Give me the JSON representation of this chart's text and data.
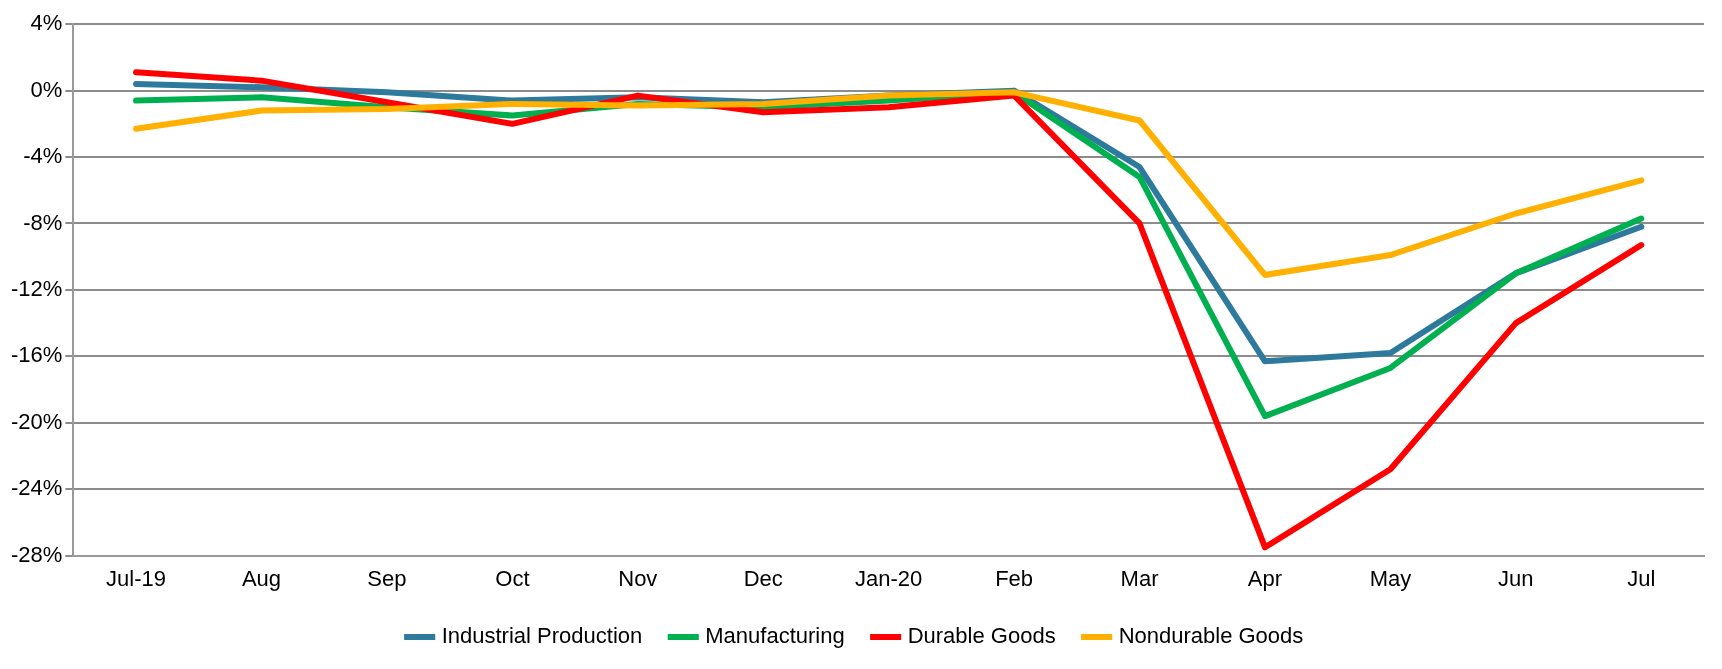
{
  "chart_data": {
    "type": "line",
    "categories": [
      "Jul-19",
      "Aug",
      "Sep",
      "Oct",
      "Nov",
      "Dec",
      "Jan-20",
      "Feb",
      "Mar",
      "Apr",
      "May",
      "Jun",
      "Jul"
    ],
    "series": [
      {
        "name": "Industrial Production",
        "color": "#2e7a9c",
        "values": [
          0.4,
          0.2,
          -0.1,
          -0.6,
          -0.4,
          -0.7,
          -0.3,
          0,
          -4.6,
          -16.3,
          -15.8,
          -11.0,
          -8.2
        ]
      },
      {
        "name": "Manufacturing",
        "color": "#00b050",
        "values": [
          -0.6,
          -0.4,
          -1.0,
          -1.5,
          -0.8,
          -1.0,
          -0.6,
          -0.1,
          -5.2,
          -19.6,
          -16.7,
          -11.0,
          -7.7
        ]
      },
      {
        "name": "Durable Goods",
        "color": "#ff0000",
        "values": [
          1.1,
          0.6,
          -0.7,
          -2.0,
          -0.3,
          -1.3,
          -1.0,
          -0.3,
          -8.0,
          -27.5,
          -22.8,
          -14.0,
          -9.3
        ]
      },
      {
        "name": "Nondurable Goods",
        "color": "#ffb000",
        "values": [
          -2.3,
          -1.2,
          -1.1,
          -0.8,
          -0.9,
          -0.8,
          -0.3,
          -0.1,
          -1.8,
          -11.1,
          -9.9,
          -7.4,
          -5.4
        ]
      }
    ],
    "ylim": [
      -28,
      4
    ],
    "yticks": [
      {
        "value": 4,
        "label": "4%"
      },
      {
        "value": 0,
        "label": "0%"
      },
      {
        "value": -4,
        "label": "-4%"
      },
      {
        "value": -8,
        "label": "-8%"
      },
      {
        "value": -12,
        "label": "-12%"
      },
      {
        "value": -16,
        "label": "-16%"
      },
      {
        "value": -20,
        "label": "-20%"
      },
      {
        "value": -24,
        "label": "-24%"
      },
      {
        "value": -28,
        "label": "-28%"
      }
    ],
    "grid": "y",
    "legend": "bottom",
    "marker": "none",
    "line_style": "solid"
  }
}
